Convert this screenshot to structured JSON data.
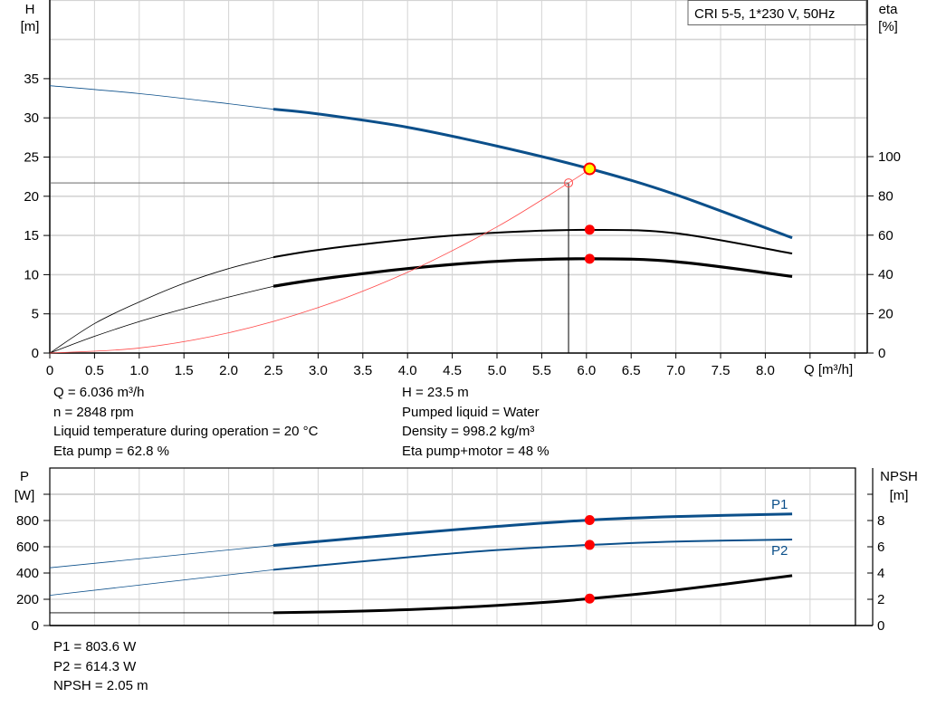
{
  "chart_data": [
    {
      "type": "line",
      "title": "CRI 5-5, 1*230 V, 50Hz",
      "xlabel": "Q [m³/h]",
      "ylabel": "H",
      "ylabel_unit": "[m]",
      "y2label": "eta",
      "y2label_unit": "[%]",
      "xlim": [
        0,
        9
      ],
      "ylim": [
        0,
        40
      ],
      "y2lim": [
        0,
        100
      ],
      "xticks": [
        "0",
        "0.5",
        "1.0",
        "1.5",
        "2.0",
        "2.5",
        "3.0",
        "3.5",
        "4.0",
        "4.5",
        "5.0",
        "5.5",
        "6.0",
        "6.5",
        "7.0",
        "7.5",
        "8.0"
      ],
      "yticks": [
        "0",
        "5",
        "10",
        "15",
        "20",
        "25",
        "30",
        "35"
      ],
      "y2ticks": [
        "0",
        "20",
        "40",
        "60",
        "80",
        "100"
      ],
      "grid": true,
      "series": [
        {
          "key": "H",
          "axis": "left",
          "color": "#0b4f8a",
          "thin_until": 2.5,
          "points": [
            [
              0,
              34.1
            ],
            [
              1,
              33.1
            ],
            [
              2,
              31.8
            ],
            [
              2.5,
              31.1
            ],
            [
              3,
              30.5
            ],
            [
              4,
              28.8
            ],
            [
              5,
              26.4
            ],
            [
              6.04,
              23.5
            ],
            [
              7,
              20.2
            ],
            [
              8.3,
              14.7
            ]
          ]
        },
        {
          "key": "eta_pump",
          "axis": "right",
          "color": "#000000",
          "thin_until": 2.5,
          "points": [
            [
              0,
              0
            ],
            [
              0.5,
              15
            ],
            [
              1,
              26
            ],
            [
              1.5,
              35.5
            ],
            [
              2,
              43
            ],
            [
              2.5,
              48.8
            ],
            [
              3,
              52.5
            ],
            [
              4,
              57.8
            ],
            [
              5,
              61.3
            ],
            [
              6.04,
              62.7
            ],
            [
              7,
              61
            ],
            [
              8.3,
              50.7
            ]
          ]
        },
        {
          "key": "eta_pump_motor",
          "axis": "right",
          "color": "#000000",
          "thin_until": 2.5,
          "points": [
            [
              0,
              0
            ],
            [
              0.5,
              8.5
            ],
            [
              1,
              16
            ],
            [
              1.5,
              22.5
            ],
            [
              2,
              28.5
            ],
            [
              2.5,
              34
            ],
            [
              3,
              37.5
            ],
            [
              4,
              43
            ],
            [
              5,
              46.7
            ],
            [
              6.04,
              48
            ],
            [
              7,
              46.5
            ],
            [
              8.3,
              39
            ]
          ]
        },
        {
          "key": "system_curve",
          "axis": "left",
          "color": "#ff4a4a",
          "thin_until": 9,
          "points": [
            [
              0,
              0
            ],
            [
              1,
              0.64
            ],
            [
              2,
              2.58
            ],
            [
              3,
              5.8
            ],
            [
              4,
              10.3
            ],
            [
              5,
              16.1
            ],
            [
              5.8,
              21.7
            ],
            [
              6.04,
              23.5
            ]
          ]
        }
      ],
      "duty_point": {
        "Q": 6.036,
        "H": 23.5,
        "eta_pump": 62.8,
        "eta_pump_motor": 48
      },
      "required_point": {
        "Q": 5.8,
        "H": 21.7
      }
    },
    {
      "type": "line",
      "xlim": [
        0,
        9
      ],
      "ylim": [
        0,
        1100
      ],
      "y2lim": [
        0,
        11
      ],
      "ylabel": "P",
      "ylabel_unit": "[W]",
      "y2label": "NPSH",
      "y2label_unit": "[m]",
      "yticks": [
        "0",
        "200",
        "400",
        "600",
        "800"
      ],
      "y2ticks": [
        "0",
        "2",
        "4",
        "6",
        "8"
      ],
      "grid": true,
      "series": [
        {
          "name": "P1",
          "axis": "left",
          "color": "#0b4f8a",
          "thin_until": 2.5,
          "points": [
            [
              0,
              440
            ],
            [
              2.5,
              610
            ],
            [
              4,
              700
            ],
            [
              5,
              755
            ],
            [
              6.04,
              803.6
            ],
            [
              7,
              830
            ],
            [
              8.3,
              850
            ]
          ]
        },
        {
          "name": "P2",
          "axis": "left",
          "color": "#0b4f8a",
          "thin_until": 2.5,
          "points": [
            [
              0,
              230
            ],
            [
              2.5,
              425
            ],
            [
              4,
              520
            ],
            [
              5,
              575
            ],
            [
              6.04,
              614.3
            ],
            [
              7,
              640
            ],
            [
              8.3,
              655
            ]
          ]
        },
        {
          "key": "NPSH",
          "axis": "right",
          "color": "#000000",
          "thin_until": 2.5,
          "points": [
            [
              0,
              0.97
            ],
            [
              2.5,
              0.97
            ],
            [
              3.5,
              1.1
            ],
            [
              4.5,
              1.35
            ],
            [
              5.5,
              1.75
            ],
            [
              6.04,
              2.05
            ],
            [
              7,
              2.7
            ],
            [
              8.3,
              3.8
            ]
          ]
        }
      ],
      "duty_point": {
        "Q": 6.036,
        "P1": 803.6,
        "P2": 614.3,
        "NPSH": 2.05
      }
    }
  ],
  "info_top": {
    "left": [
      "Q = 6.036 m³/h",
      "n = 2848 rpm",
      "Liquid temperature during operation = 20 °C",
      "Eta pump = 62.8 %"
    ],
    "right": [
      "H = 23.5 m",
      "Pumped liquid = Water",
      "Density = 998.2 kg/m³",
      "Eta pump+motor = 48 %"
    ]
  },
  "info_bottom": [
    "P1 = 803.6 W",
    "P2 = 614.3 W",
    "NPSH = 2.05 m"
  ]
}
